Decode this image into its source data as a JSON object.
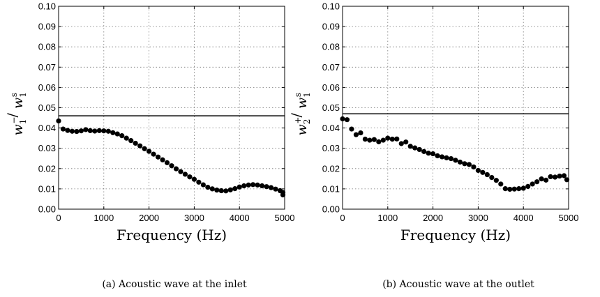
{
  "chart_data": [
    {
      "type": "scatter",
      "caption": "(a)  Acoustic wave at the inlet",
      "xlabel": "Frequency (Hz)",
      "ylabel": {
        "base1": "w",
        "sub1": "1",
        "sup1": "−",
        "base2": "w",
        "sub2": "1",
        "sup2": "s"
      },
      "xlim": [
        0,
        5000
      ],
      "ylim": [
        0,
        0.1
      ],
      "xticks": [
        0,
        1000,
        2000,
        3000,
        4000,
        5000
      ],
      "yticks": [
        "0.00",
        "0.01",
        "0.02",
        "0.03",
        "0.04",
        "0.05",
        "0.06",
        "0.07",
        "0.08",
        "0.09",
        "0.10"
      ],
      "grid": true,
      "reference_line": 0.046,
      "series": [
        {
          "points": [
            [
              0,
              0.0435
            ],
            [
              100,
              0.0395
            ],
            [
              200,
              0.0388
            ],
            [
              300,
              0.0384
            ],
            [
              400,
              0.0383
            ],
            [
              500,
              0.0386
            ],
            [
              600,
              0.0392
            ],
            [
              700,
              0.0387
            ],
            [
              800,
              0.0385
            ],
            [
              900,
              0.0387
            ],
            [
              1000,
              0.0386
            ],
            [
              1100,
              0.0384
            ],
            [
              1200,
              0.0377
            ],
            [
              1300,
              0.0371
            ],
            [
              1400,
              0.0362
            ],
            [
              1500,
              0.035
            ],
            [
              1600,
              0.0338
            ],
            [
              1700,
              0.0325
            ],
            [
              1800,
              0.0312
            ],
            [
              1900,
              0.0298
            ],
            [
              2000,
              0.0285
            ],
            [
              2100,
              0.0271
            ],
            [
              2200,
              0.0257
            ],
            [
              2300,
              0.0243
            ],
            [
              2400,
              0.0229
            ],
            [
              2500,
              0.0214
            ],
            [
              2600,
              0.0199
            ],
            [
              2700,
              0.0185
            ],
            [
              2800,
              0.0172
            ],
            [
              2900,
              0.0159
            ],
            [
              3000,
              0.0147
            ],
            [
              3100,
              0.0133
            ],
            [
              3200,
              0.012
            ],
            [
              3300,
              0.0108
            ],
            [
              3400,
              0.01
            ],
            [
              3500,
              0.0094
            ],
            [
              3600,
              0.0091
            ],
            [
              3700,
              0.009
            ],
            [
              3800,
              0.0095
            ],
            [
              3900,
              0.0101
            ],
            [
              4000,
              0.0109
            ],
            [
              4100,
              0.0115
            ],
            [
              4200,
              0.0119
            ],
            [
              4300,
              0.0121
            ],
            [
              4400,
              0.0119
            ],
            [
              4500,
              0.0115
            ],
            [
              4600,
              0.0111
            ],
            [
              4700,
              0.0106
            ],
            [
              4800,
              0.0099
            ],
            [
              4900,
              0.0091
            ],
            [
              5000,
              0.0082
            ],
            [
              5100,
              0.007
            ]
          ]
        }
      ]
    },
    {
      "type": "scatter",
      "caption": "(b)  Acoustic wave at the outlet",
      "xlabel": "Frequency (Hz)",
      "ylabel": {
        "base1": "w",
        "sub1": "2",
        "sup1": "+",
        "base2": "w",
        "sub2": "1",
        "sup2": "s"
      },
      "xlim": [
        0,
        5000
      ],
      "ylim": [
        0,
        0.1
      ],
      "xticks": [
        0,
        1000,
        2000,
        3000,
        4000,
        5000
      ],
      "yticks": [
        "0.00",
        "0.01",
        "0.02",
        "0.03",
        "0.04",
        "0.05",
        "0.06",
        "0.07",
        "0.08",
        "0.09",
        "0.10"
      ],
      "grid": true,
      "reference_line": 0.047,
      "series": [
        {
          "points": [
            [
              0,
              0.0445
            ],
            [
              100,
              0.0441
            ],
            [
              200,
              0.0395
            ],
            [
              300,
              0.0367
            ],
            [
              400,
              0.0376
            ],
            [
              500,
              0.0345
            ],
            [
              600,
              0.034
            ],
            [
              700,
              0.0343
            ],
            [
              800,
              0.0332
            ],
            [
              900,
              0.034
            ],
            [
              1000,
              0.035
            ],
            [
              1100,
              0.0345
            ],
            [
              1200,
              0.0346
            ],
            [
              1300,
              0.0323
            ],
            [
              1400,
              0.0331
            ],
            [
              1500,
              0.031
            ],
            [
              1600,
              0.0302
            ],
            [
              1700,
              0.0294
            ],
            [
              1800,
              0.0284
            ],
            [
              1900,
              0.0276
            ],
            [
              2000,
              0.0273
            ],
            [
              2100,
              0.0263
            ],
            [
              2200,
              0.0258
            ],
            [
              2300,
              0.0253
            ],
            [
              2400,
              0.0249
            ],
            [
              2500,
              0.0241
            ],
            [
              2600,
              0.0232
            ],
            [
              2700,
              0.0224
            ],
            [
              2800,
              0.022
            ],
            [
              2900,
              0.0208
            ],
            [
              3000,
              0.0191
            ],
            [
              3100,
              0.0181
            ],
            [
              3200,
              0.017
            ],
            [
              3300,
              0.0156
            ],
            [
              3400,
              0.0142
            ],
            [
              3500,
              0.0124
            ],
            [
              3600,
              0.0101
            ],
            [
              3700,
              0.0098
            ],
            [
              3800,
              0.0099
            ],
            [
              3900,
              0.0101
            ],
            [
              4000,
              0.0103
            ],
            [
              4100,
              0.0112
            ],
            [
              4200,
              0.0124
            ],
            [
              4300,
              0.0135
            ],
            [
              4400,
              0.0149
            ],
            [
              4500,
              0.0143
            ],
            [
              4600,
              0.016
            ],
            [
              4700,
              0.0158
            ],
            [
              4800,
              0.0163
            ],
            [
              4900,
              0.0165
            ],
            [
              5000,
              0.0145
            ]
          ]
        }
      ]
    }
  ]
}
